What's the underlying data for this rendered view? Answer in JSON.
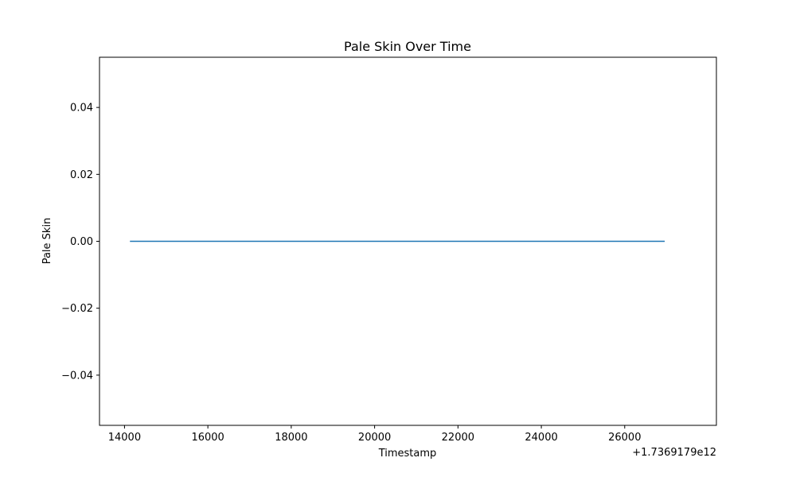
{
  "chart_data": {
    "type": "line",
    "title": "Pale Skin Over Time",
    "xlabel": "Timestamp",
    "ylabel": "Pale Skin",
    "x_offset_label": "+1.7369179e12",
    "xlim": [
      13400,
      28200
    ],
    "ylim": [
      -0.055,
      0.055
    ],
    "x_ticks": [
      14000,
      16000,
      18000,
      20000,
      22000,
      24000,
      26000
    ],
    "x_tick_labels": [
      "14000",
      "16000",
      "18000",
      "20000",
      "22000",
      "24000",
      "26000"
    ],
    "y_ticks": [
      0.04,
      0.02,
      0.0,
      -0.02,
      -0.04
    ],
    "y_tick_labels": [
      "0.04",
      "0.02",
      "0.00",
      "−0.02",
      "−0.04"
    ],
    "grid": false,
    "line_color": "#1f77b4",
    "series": [
      {
        "x": [
          14130,
          16000,
          18000,
          20000,
          22000,
          24000,
          26000,
          26960
        ],
        "y": [
          0,
          0,
          0,
          0,
          0,
          0,
          0,
          0
        ]
      }
    ]
  }
}
